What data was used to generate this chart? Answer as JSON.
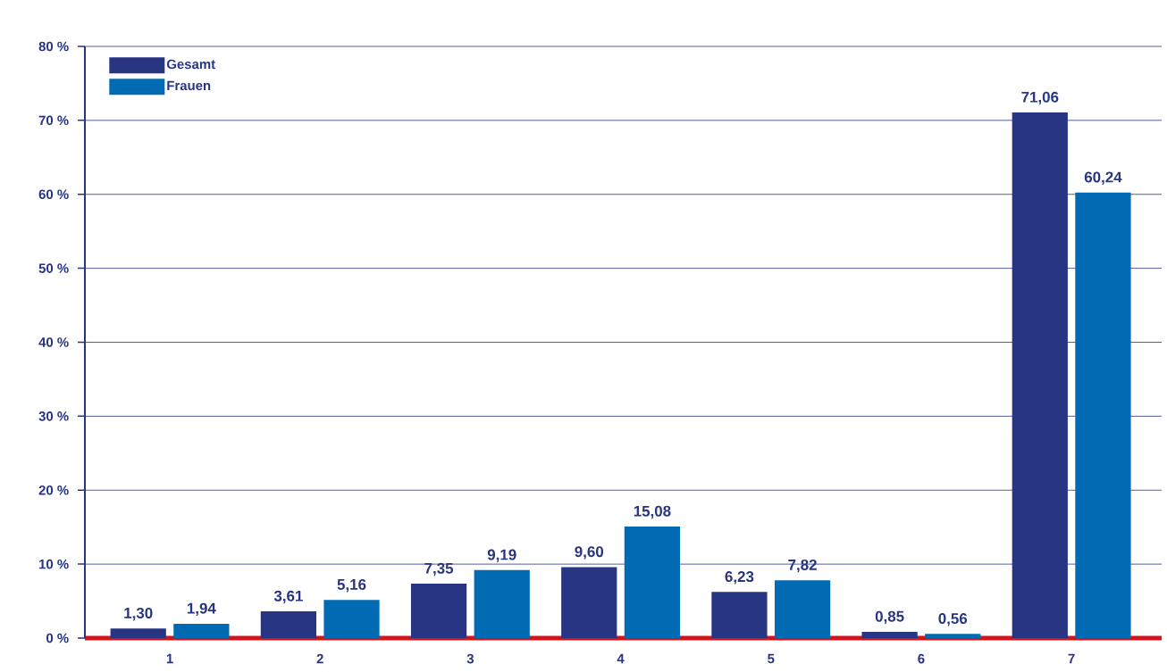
{
  "chart_data": {
    "type": "bar",
    "categories": [
      "1",
      "2",
      "3",
      "4",
      "5",
      "6",
      "7"
    ],
    "series": [
      {
        "name": "Gesamt",
        "color": "#283583",
        "values": [
          1.3,
          3.61,
          7.35,
          9.6,
          6.23,
          0.85,
          71.06
        ],
        "value_labels": [
          "1,30",
          "3,61",
          "7,35",
          "9,60",
          "6,23",
          "0,85",
          "71,06"
        ]
      },
      {
        "name": "Frauen",
        "color": "#006ab3",
        "values": [
          1.94,
          5.16,
          9.19,
          15.08,
          7.82,
          0.56,
          60.24
        ],
        "value_labels": [
          "1,94",
          "5,16",
          "9,19",
          "15,08",
          "7,82",
          "0,56",
          "60,24"
        ]
      }
    ],
    "ylim": [
      0,
      80
    ],
    "yticks": [
      {
        "value": 0,
        "label": "0 %"
      },
      {
        "value": 10,
        "label": "10 %"
      },
      {
        "value": 20,
        "label": "20 %"
      },
      {
        "value": 30,
        "label": "30 %"
      },
      {
        "value": 40,
        "label": "40 %"
      },
      {
        "value": 50,
        "label": "50 %"
      },
      {
        "value": 60,
        "label": "60 %"
      },
      {
        "value": 70,
        "label": "70 %"
      },
      {
        "value": 80,
        "label": "80 %"
      }
    ],
    "grid": "y",
    "legend": "top left"
  }
}
